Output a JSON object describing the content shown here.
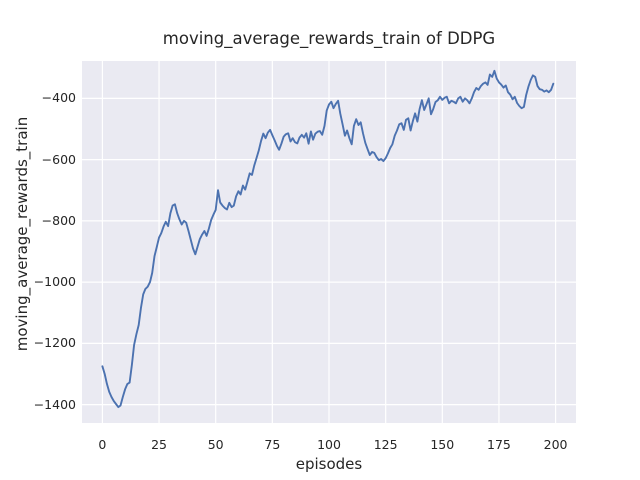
{
  "figure": {
    "title": "moving_average_rewards_train of DDPG",
    "xlabel": "episodes",
    "ylabel": "moving_average_rewards_train"
  },
  "colors": {
    "figure_background": "#ffffff",
    "plot_background": "#eaeaf2",
    "grid": "#ffffff",
    "line": "#4c72b0",
    "text": "#262626"
  },
  "chart_data": {
    "type": "line",
    "title": "moving_average_rewards_train of DDPG",
    "xlabel": "episodes",
    "ylabel": "moving_average_rewards_train",
    "x_ticks": [
      0,
      25,
      50,
      75,
      100,
      125,
      150,
      175,
      200
    ],
    "y_ticks": [
      -400,
      -600,
      -800,
      -1000,
      -1200,
      -1400
    ],
    "xlim": [
      -9,
      209
    ],
    "ylim": [
      -1460,
      -278
    ],
    "grid": true,
    "legend": null,
    "series": [
      {
        "name": "moving_average_rewards_train",
        "x_is_index": true,
        "x_start": 0,
        "values": [
          -1275,
          -1300,
          -1332,
          -1358,
          -1375,
          -1388,
          -1398,
          -1408,
          -1403,
          -1375,
          -1350,
          -1333,
          -1328,
          -1270,
          -1205,
          -1170,
          -1140,
          -1085,
          -1040,
          -1022,
          -1015,
          -1000,
          -970,
          -915,
          -885,
          -855,
          -840,
          -818,
          -803,
          -817,
          -775,
          -750,
          -746,
          -775,
          -795,
          -812,
          -800,
          -806,
          -833,
          -862,
          -890,
          -909,
          -884,
          -860,
          -845,
          -833,
          -849,
          -825,
          -797,
          -780,
          -764,
          -700,
          -740,
          -750,
          -758,
          -763,
          -741,
          -755,
          -750,
          -720,
          -703,
          -714,
          -685,
          -698,
          -672,
          -645,
          -650,
          -620,
          -595,
          -570,
          -540,
          -515,
          -530,
          -512,
          -503,
          -520,
          -537,
          -555,
          -568,
          -548,
          -525,
          -517,
          -514,
          -541,
          -530,
          -543,
          -547,
          -528,
          -519,
          -528,
          -514,
          -548,
          -508,
          -535,
          -515,
          -509,
          -507,
          -519,
          -490,
          -440,
          -420,
          -411,
          -432,
          -418,
          -408,
          -450,
          -485,
          -522,
          -505,
          -530,
          -550,
          -490,
          -468,
          -487,
          -478,
          -514,
          -545,
          -565,
          -585,
          -575,
          -578,
          -592,
          -602,
          -598,
          -605,
          -595,
          -580,
          -562,
          -550,
          -522,
          -505,
          -485,
          -481,
          -503,
          -470,
          -465,
          -505,
          -475,
          -449,
          -476,
          -435,
          -406,
          -438,
          -420,
          -400,
          -452,
          -435,
          -412,
          -406,
          -395,
          -405,
          -398,
          -395,
          -416,
          -408,
          -411,
          -416,
          -400,
          -395,
          -411,
          -400,
          -406,
          -416,
          -400,
          -380,
          -366,
          -372,
          -360,
          -352,
          -348,
          -356,
          -322,
          -330,
          -310,
          -335,
          -348,
          -355,
          -365,
          -358,
          -380,
          -388,
          -403,
          -395,
          -415,
          -425,
          -432,
          -428,
          -390,
          -362,
          -340,
          -325,
          -330,
          -360,
          -370,
          -372,
          -378,
          -374,
          -380,
          -372,
          -352
        ]
      }
    ]
  }
}
